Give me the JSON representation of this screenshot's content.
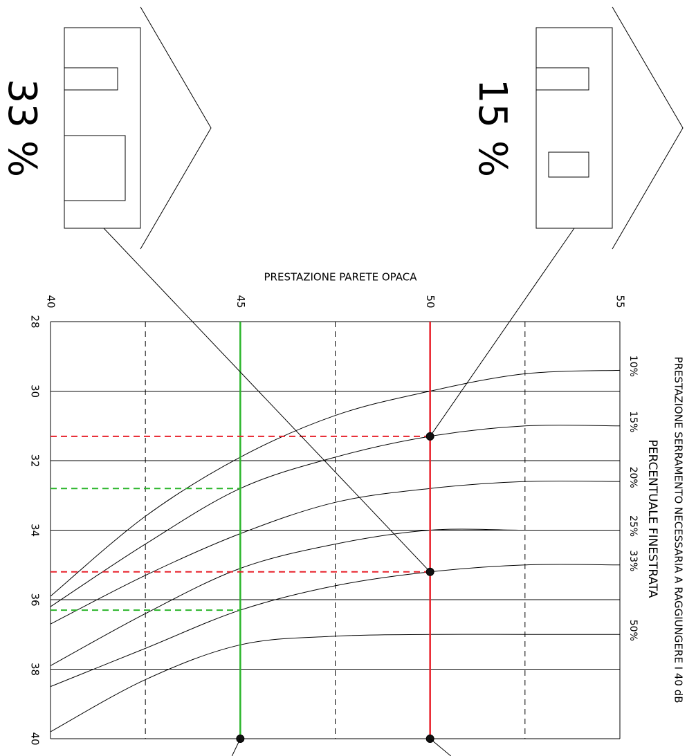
{
  "chart_data": {
    "type": "line",
    "title": "PRESTAZIONE PARETE OPACA",
    "y_label": "PRESTAZIONE SERRAMENTO NECESSARIA A RAGGIUNGERE I 40 dB",
    "legend_title": "PERCENTUALE FINESTRATA",
    "x": [
      40,
      42.5,
      45,
      47.5,
      50,
      52.5,
      55
    ],
    "xlim": [
      40,
      55
    ],
    "xticks": [
      40,
      45,
      50,
      55
    ],
    "x_dashed_grid": [
      42.5,
      47.5,
      52.5
    ],
    "ylim": [
      28,
      40
    ],
    "yticks": [
      28,
      30,
      32,
      34,
      36,
      38,
      40
    ],
    "y_reversed": true,
    "grid": true,
    "series": [
      {
        "name": "10%",
        "color": "#000000",
        "values": [
          35.9,
          33.6,
          31.9,
          30.7,
          30.0,
          29.5,
          29.4
        ]
      },
      {
        "name": "15%",
        "color": "#000000",
        "values": [
          36.2,
          34.4,
          32.8,
          31.9,
          31.3,
          31.0,
          31.0
        ]
      },
      {
        "name": "20%",
        "color": "#000000",
        "values": [
          36.7,
          35.3,
          34.1,
          33.2,
          32.8,
          32.6,
          32.6
        ]
      },
      {
        "name": "25%",
        "color": "#000000",
        "values": [
          37.9,
          36.4,
          35.1,
          34.4,
          34.0,
          34.0,
          34.0
        ]
      },
      {
        "name": "33%",
        "color": "#000000",
        "values": [
          38.5,
          37.4,
          36.3,
          35.6,
          35.2,
          35.0,
          35.0
        ]
      },
      {
        "name": "50%",
        "color": "#000000",
        "values": [
          39.8,
          38.3,
          37.3,
          37.05,
          37.0,
          37.0,
          37.0
        ]
      }
    ],
    "vlines": [
      {
        "x": 45,
        "color": "#2ab52a"
      },
      {
        "x": 50,
        "color": "#e8202a"
      }
    ],
    "points": [
      {
        "x": 50,
        "y": 31.3,
        "color": "#e8202a",
        "dashed": true,
        "dot": true
      },
      {
        "x": 50,
        "y": 35.2,
        "color": "#e8202a",
        "dashed": true,
        "dot": true
      },
      {
        "x": 45,
        "y": 32.8,
        "color": "#2ab52a",
        "dashed": true,
        "dot": false
      },
      {
        "x": 45,
        "y": 36.3,
        "color": "#2ab52a",
        "dashed": true,
        "dot": false
      },
      {
        "x": 45,
        "y": 40,
        "color": "#2ab52a",
        "dashed": false,
        "dot": true
      },
      {
        "x": 50,
        "y": 40,
        "color": "#e8202a",
        "dashed": false,
        "dot": true
      }
    ],
    "houses": [
      {
        "label": "33 %",
        "point": 1
      },
      {
        "label": "15 %",
        "point": 0
      }
    ]
  }
}
